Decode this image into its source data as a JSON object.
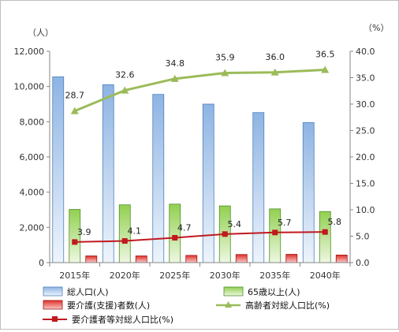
{
  "chart_data": {
    "type": "bar",
    "categories": [
      "2015年",
      "2020年",
      "2025年",
      "2030年",
      "2035年",
      "2040年"
    ],
    "y_left": {
      "unit_label": "（人）",
      "range": [
        0,
        12000
      ],
      "ticks": [
        "0",
        "2,000",
        "4,000",
        "6,000",
        "8,000",
        "10,000",
        "12,000"
      ]
    },
    "y_right": {
      "unit_label": "（%）",
      "range": [
        0,
        40
      ],
      "ticks": [
        "0.0",
        "5.0",
        "10.0",
        "15.0",
        "20.0",
        "25.0",
        "30.0",
        "35.0",
        "40.0"
      ]
    },
    "series": [
      {
        "name": "総人口(人)",
        "kind": "bar",
        "axis": "left",
        "color": "#8eb4e3",
        "values": [
          10550,
          10100,
          9550,
          9000,
          8520,
          7950
        ]
      },
      {
        "name": "65歳以上(人)",
        "kind": "bar",
        "axis": "left",
        "color": "#92d050",
        "values": [
          3020,
          3280,
          3320,
          3220,
          3050,
          2900
        ]
      },
      {
        "name": "要介護(支援)者数(人)",
        "kind": "bar",
        "axis": "left",
        "color": "#e0302a",
        "values": [
          380,
          380,
          410,
          460,
          470,
          430
        ]
      },
      {
        "name": "高齢者対総人口比(%)",
        "kind": "line",
        "axis": "right",
        "color": "#9bbb59",
        "marker": "triangle",
        "values": [
          28.7,
          32.6,
          34.8,
          35.9,
          36.0,
          36.5
        ],
        "labels": [
          "28.7",
          "32.6",
          "34.8",
          "35.9",
          "36.0",
          "36.5"
        ]
      },
      {
        "name": "要介護者等対総人口比(%)",
        "kind": "line",
        "axis": "right",
        "color": "#c0191f",
        "marker": "square",
        "values": [
          3.9,
          4.1,
          4.7,
          5.4,
          5.7,
          5.8
        ],
        "labels": [
          "3.9",
          "4.1",
          "4.7",
          "5.4",
          "5.7",
          "5.8"
        ]
      }
    ],
    "grid": false,
    "legend_position": "bottom"
  }
}
